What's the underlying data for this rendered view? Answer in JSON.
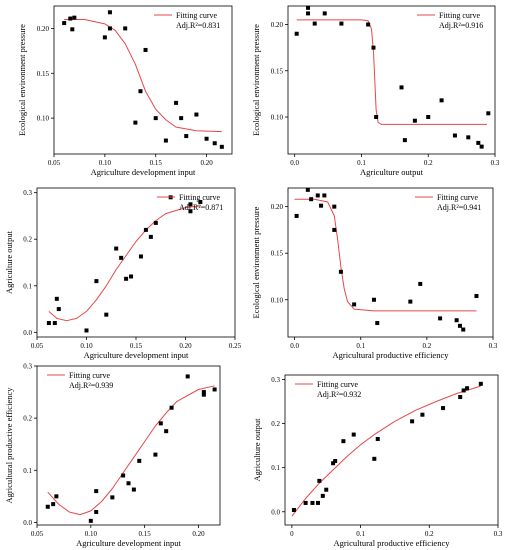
{
  "chart_data": [
    {
      "type": "scatter",
      "xlabel": "Agriculture development input",
      "ylabel": "Ecological environment pressure",
      "xlim": [
        0.05,
        0.225
      ],
      "ylim": [
        0.06,
        0.225
      ],
      "xticks": [
        0.05,
        0.1,
        0.15,
        0.2
      ],
      "xtick_labels": [
        "0.05",
        "0.10",
        "0.15",
        "0.20"
      ],
      "yticks": [
        0.1,
        0.15,
        0.2
      ],
      "ytick_labels": [
        "0.10",
        "0.15",
        "0.20"
      ],
      "legend": {
        "label": "Fitting curve",
        "position": "top-right"
      },
      "adj_r2_label": "Adj.R²=0.831",
      "points": [
        [
          0.06,
          0.206
        ],
        [
          0.066,
          0.211
        ],
        [
          0.07,
          0.212
        ],
        [
          0.068,
          0.199
        ],
        [
          0.1,
          0.19
        ],
        [
          0.105,
          0.218
        ],
        [
          0.105,
          0.2
        ],
        [
          0.12,
          0.2
        ],
        [
          0.14,
          0.176
        ],
        [
          0.135,
          0.13
        ],
        [
          0.13,
          0.095
        ],
        [
          0.15,
          0.1
        ],
        [
          0.16,
          0.075
        ],
        [
          0.17,
          0.117
        ],
        [
          0.175,
          0.1
        ],
        [
          0.18,
          0.08
        ],
        [
          0.19,
          0.104
        ],
        [
          0.2,
          0.077
        ],
        [
          0.208,
          0.072
        ],
        [
          0.215,
          0.068
        ]
      ],
      "fit_curve": [
        [
          0.06,
          0.21
        ],
        [
          0.08,
          0.21
        ],
        [
          0.1,
          0.205
        ],
        [
          0.11,
          0.198
        ],
        [
          0.12,
          0.183
        ],
        [
          0.13,
          0.16
        ],
        [
          0.14,
          0.13
        ],
        [
          0.15,
          0.11
        ],
        [
          0.16,
          0.098
        ],
        [
          0.17,
          0.09
        ],
        [
          0.19,
          0.086
        ],
        [
          0.215,
          0.085
        ]
      ]
    },
    {
      "type": "scatter",
      "xlabel": "Agriculture output",
      "ylabel": "Ecological environment pressure",
      "xlim": [
        -0.01,
        0.3
      ],
      "ylim": [
        0.06,
        0.22
      ],
      "xticks": [
        0.0,
        0.1,
        0.2,
        0.3
      ],
      "xtick_labels": [
        "0.0",
        "0.1",
        "0.2",
        "0.3"
      ],
      "yticks": [
        0.1,
        0.15,
        0.2
      ],
      "ytick_labels": [
        "0.10",
        "0.15",
        "0.20"
      ],
      "legend": {
        "label": "Fitting curve",
        "position": "top-right"
      },
      "adj_r2_label": "Adj.R²=0.916",
      "points": [
        [
          0.003,
          0.19
        ],
        [
          0.02,
          0.218
        ],
        [
          0.02,
          0.212
        ],
        [
          0.03,
          0.201
        ],
        [
          0.045,
          0.212
        ],
        [
          0.07,
          0.201
        ],
        [
          0.11,
          0.2
        ],
        [
          0.118,
          0.175
        ],
        [
          0.122,
          0.1
        ],
        [
          0.16,
          0.132
        ],
        [
          0.165,
          0.075
        ],
        [
          0.18,
          0.096
        ],
        [
          0.2,
          0.1
        ],
        [
          0.22,
          0.118
        ],
        [
          0.24,
          0.08
        ],
        [
          0.26,
          0.078
        ],
        [
          0.275,
          0.072
        ],
        [
          0.28,
          0.068
        ],
        [
          0.29,
          0.104
        ]
      ],
      "fit_curve": [
        [
          0.003,
          0.205
        ],
        [
          0.05,
          0.205
        ],
        [
          0.1,
          0.205
        ],
        [
          0.11,
          0.204
        ],
        [
          0.115,
          0.195
        ],
        [
          0.118,
          0.17
        ],
        [
          0.12,
          0.14
        ],
        [
          0.122,
          0.108
        ],
        [
          0.125,
          0.094
        ],
        [
          0.13,
          0.092
        ],
        [
          0.2,
          0.092
        ],
        [
          0.288,
          0.092
        ]
      ]
    },
    {
      "type": "scatter",
      "xlabel": "Agriculture development input",
      "ylabel": "Agriculture output",
      "xlim": [
        0.05,
        0.25
      ],
      "ylim": [
        -0.01,
        0.31
      ],
      "xticks": [
        0.05,
        0.1,
        0.15,
        0.2,
        0.25
      ],
      "xtick_labels": [
        "0.05",
        "0.10",
        "0.15",
        "0.20",
        "0.25"
      ],
      "yticks": [
        0.0,
        0.1,
        0.2,
        0.3
      ],
      "ytick_labels": [
        "0.0",
        "0.1",
        "0.2",
        "0.3"
      ],
      "legend": {
        "label": "Fitting curve",
        "position": "top-right"
      },
      "adj_r2_label": "Adj.R²=0.871",
      "points": [
        [
          0.062,
          0.02
        ],
        [
          0.068,
          0.02
        ],
        [
          0.07,
          0.072
        ],
        [
          0.072,
          0.05
        ],
        [
          0.11,
          0.11
        ],
        [
          0.1,
          0.004
        ],
        [
          0.12,
          0.038
        ],
        [
          0.13,
          0.18
        ],
        [
          0.135,
          0.16
        ],
        [
          0.14,
          0.115
        ],
        [
          0.145,
          0.12
        ],
        [
          0.155,
          0.163
        ],
        [
          0.16,
          0.22
        ],
        [
          0.165,
          0.205
        ],
        [
          0.17,
          0.235
        ],
        [
          0.185,
          0.29
        ],
        [
          0.205,
          0.26
        ],
        [
          0.205,
          0.275
        ],
        [
          0.215,
          0.28
        ]
      ],
      "fit_curve": [
        [
          0.062,
          0.045
        ],
        [
          0.07,
          0.03
        ],
        [
          0.08,
          0.025
        ],
        [
          0.09,
          0.03
        ],
        [
          0.1,
          0.045
        ],
        [
          0.11,
          0.07
        ],
        [
          0.12,
          0.1
        ],
        [
          0.13,
          0.135
        ],
        [
          0.14,
          0.165
        ],
        [
          0.15,
          0.195
        ],
        [
          0.16,
          0.22
        ],
        [
          0.17,
          0.24
        ],
        [
          0.18,
          0.255
        ],
        [
          0.2,
          0.268
        ],
        [
          0.215,
          0.272
        ]
      ]
    },
    {
      "type": "scatter",
      "xlabel": "Agricultural productive efficiency",
      "ylabel": "Ecological environment pressure",
      "xlim": [
        -0.01,
        0.3
      ],
      "ylim": [
        0.06,
        0.22
      ],
      "xticks": [
        0.0,
        0.1,
        0.2,
        0.3
      ],
      "xtick_labels": [
        "0.0",
        "0.1",
        "0.2",
        "0.3"
      ],
      "yticks": [
        0.1,
        0.15,
        0.2
      ],
      "ytick_labels": [
        "0.10",
        "0.15",
        "0.20"
      ],
      "legend": {
        "label": "Fitting curve",
        "position": "top-right"
      },
      "adj_r2_label": "Adj.R²=0.941",
      "points": [
        [
          0.003,
          0.19
        ],
        [
          0.02,
          0.218
        ],
        [
          0.025,
          0.208
        ],
        [
          0.035,
          0.212
        ],
        [
          0.04,
          0.201
        ],
        [
          0.045,
          0.212
        ],
        [
          0.06,
          0.2
        ],
        [
          0.06,
          0.175
        ],
        [
          0.07,
          0.13
        ],
        [
          0.09,
          0.095
        ],
        [
          0.12,
          0.1
        ],
        [
          0.125,
          0.075
        ],
        [
          0.175,
          0.098
        ],
        [
          0.19,
          0.117
        ],
        [
          0.22,
          0.08
        ],
        [
          0.245,
          0.078
        ],
        [
          0.25,
          0.072
        ],
        [
          0.255,
          0.068
        ],
        [
          0.275,
          0.104
        ]
      ],
      "fit_curve": [
        [
          0.0,
          0.208
        ],
        [
          0.03,
          0.208
        ],
        [
          0.05,
          0.205
        ],
        [
          0.06,
          0.19
        ],
        [
          0.065,
          0.165
        ],
        [
          0.07,
          0.135
        ],
        [
          0.075,
          0.112
        ],
        [
          0.08,
          0.098
        ],
        [
          0.09,
          0.09
        ],
        [
          0.12,
          0.088
        ],
        [
          0.2,
          0.088
        ],
        [
          0.275,
          0.088
        ]
      ]
    },
    {
      "type": "scatter",
      "xlabel": "Agriculture development input",
      "ylabel": "Agricultural productive efficiency",
      "xlim": [
        0.05,
        0.22
      ],
      "ylim": [
        -0.005,
        0.3
      ],
      "xticks": [
        0.05,
        0.1,
        0.15,
        0.2
      ],
      "xtick_labels": [
        "0.05",
        "0.10",
        "0.15",
        "0.20"
      ],
      "yticks": [
        0.0,
        0.1,
        0.2,
        0.3
      ],
      "ytick_labels": [
        "0.0",
        "0.1",
        "0.2",
        "0.3"
      ],
      "legend": {
        "label": "Fitting curve",
        "position": "top-left"
      },
      "adj_r2_label": "Adj.R²=0.939",
      "points": [
        [
          0.06,
          0.03
        ],
        [
          0.065,
          0.035
        ],
        [
          0.068,
          0.05
        ],
        [
          0.1,
          0.003
        ],
        [
          0.105,
          0.02
        ],
        [
          0.105,
          0.06
        ],
        [
          0.12,
          0.048
        ],
        [
          0.13,
          0.09
        ],
        [
          0.135,
          0.075
        ],
        [
          0.14,
          0.063
        ],
        [
          0.145,
          0.118
        ],
        [
          0.16,
          0.13
        ],
        [
          0.165,
          0.19
        ],
        [
          0.17,
          0.175
        ],
        [
          0.175,
          0.22
        ],
        [
          0.19,
          0.28
        ],
        [
          0.205,
          0.245
        ],
        [
          0.205,
          0.25
        ],
        [
          0.215,
          0.255
        ]
      ],
      "fit_curve": [
        [
          0.06,
          0.058
        ],
        [
          0.07,
          0.035
        ],
        [
          0.08,
          0.02
        ],
        [
          0.09,
          0.015
        ],
        [
          0.1,
          0.022
        ],
        [
          0.11,
          0.04
        ],
        [
          0.12,
          0.065
        ],
        [
          0.13,
          0.095
        ],
        [
          0.14,
          0.125
        ],
        [
          0.15,
          0.155
        ],
        [
          0.16,
          0.185
        ],
        [
          0.17,
          0.21
        ],
        [
          0.18,
          0.232
        ],
        [
          0.2,
          0.255
        ],
        [
          0.215,
          0.262
        ]
      ]
    },
    {
      "type": "scatter",
      "xlabel": "Agricultural productive efficiency",
      "ylabel": "Agriculture output",
      "xlim": [
        -0.01,
        0.3
      ],
      "ylim": [
        -0.03,
        0.31
      ],
      "xticks": [
        0.0,
        0.1,
        0.2,
        0.3
      ],
      "xtick_labels": [
        "0",
        "0.1",
        "0.2",
        "0.3"
      ],
      "yticks": [
        0.0,
        0.1,
        0.2,
        0.3
      ],
      "ytick_labels": [
        "0.0",
        "0.1",
        "0.2",
        "0.3"
      ],
      "legend": {
        "label": "Fitting curve",
        "position": "top-left"
      },
      "adj_r2_label": "Adj.R²=0.932",
      "points": [
        [
          0.003,
          0.004
        ],
        [
          0.02,
          0.02
        ],
        [
          0.03,
          0.02
        ],
        [
          0.038,
          0.02
        ],
        [
          0.04,
          0.07
        ],
        [
          0.045,
          0.036
        ],
        [
          0.05,
          0.05
        ],
        [
          0.06,
          0.11
        ],
        [
          0.063,
          0.115
        ],
        [
          0.075,
          0.16
        ],
        [
          0.09,
          0.175
        ],
        [
          0.12,
          0.12
        ],
        [
          0.125,
          0.165
        ],
        [
          0.175,
          0.205
        ],
        [
          0.19,
          0.22
        ],
        [
          0.22,
          0.235
        ],
        [
          0.245,
          0.26
        ],
        [
          0.25,
          0.275
        ],
        [
          0.255,
          0.28
        ],
        [
          0.275,
          0.29
        ]
      ],
      "fit_curve": [
        [
          0.0,
          -0.01
        ],
        [
          0.02,
          0.03
        ],
        [
          0.04,
          0.065
        ],
        [
          0.06,
          0.095
        ],
        [
          0.08,
          0.125
        ],
        [
          0.1,
          0.152
        ],
        [
          0.12,
          0.175
        ],
        [
          0.15,
          0.205
        ],
        [
          0.18,
          0.23
        ],
        [
          0.21,
          0.25
        ],
        [
          0.24,
          0.268
        ],
        [
          0.275,
          0.285
        ]
      ]
    }
  ]
}
